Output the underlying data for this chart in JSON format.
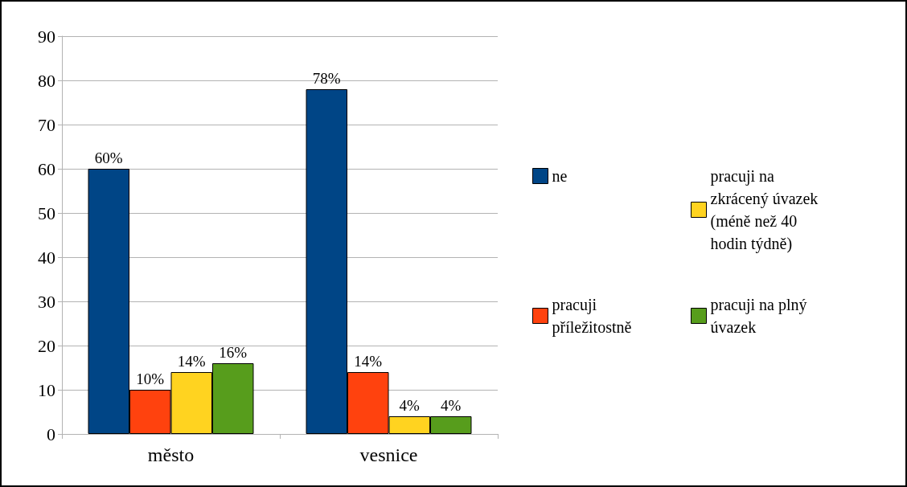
{
  "chart_data": {
    "type": "bar",
    "categories": [
      "město",
      "vesnice"
    ],
    "series": [
      {
        "name": "ne",
        "color": "#004586",
        "values": [
          60,
          78
        ],
        "value_labels": [
          "60%",
          "78%"
        ]
      },
      {
        "name": "pracuji příležitostně",
        "color": "#ff420e",
        "values": [
          10,
          14
        ],
        "value_labels": [
          "10%",
          "14%"
        ]
      },
      {
        "name": "pracuji na zkrácený úvazek (méně než 40 hodin týdně)",
        "color": "#ffd320",
        "values": [
          14,
          4
        ],
        "value_labels": [
          "14%",
          "4%"
        ]
      },
      {
        "name": "pracuji na plný úvazek",
        "color": "#579d1c",
        "values": [
          16,
          4
        ],
        "value_labels": [
          "16%",
          "4%"
        ]
      }
    ],
    "ylim": [
      0,
      90
    ],
    "yticks": [
      0,
      10,
      20,
      30,
      40,
      50,
      60,
      70,
      80,
      90
    ],
    "grid": "y",
    "legend": "right"
  }
}
